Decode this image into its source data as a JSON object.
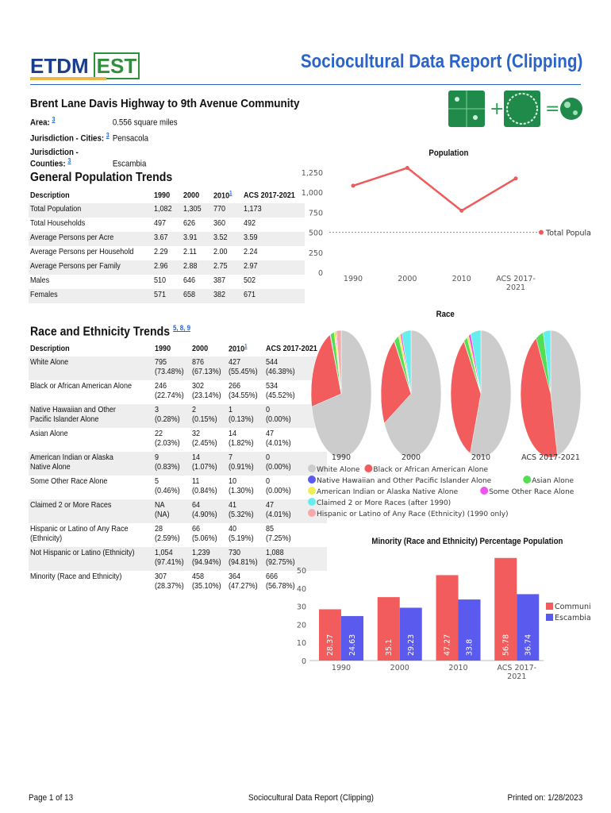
{
  "header": {
    "logo_left": "ETDM",
    "logo_right": "EST",
    "report_title": "Sociocultural Data Report (Clipping)"
  },
  "location": {
    "title": "Brent Lane Davis Highway to 9th Avenue Community",
    "area_label": "Area:",
    "area_ref": "3",
    "area_value": "0.556 square miles",
    "cities_label": "Jurisdiction - Cities:",
    "cities_ref": "3",
    "cities_value": "Pensacola",
    "counties_label": "Jurisdiction - Counties:",
    "counties_ref": "3",
    "counties_value": "Escambia"
  },
  "puzzle": {
    "plus": "+",
    "equals": "="
  },
  "population_section": {
    "title": "General Population Trends",
    "headers": [
      "Description",
      "1990",
      "2000",
      "2010",
      "ACS 2017-2021"
    ],
    "header_ref": "1",
    "rows": [
      [
        "Total Population",
        "1,082",
        "1,305",
        "770",
        "1,173"
      ],
      [
        "Total Households",
        "497",
        "626",
        "360",
        "492"
      ],
      [
        "Average Persons per Acre",
        "3.67",
        "3.91",
        "3.52",
        "3.59"
      ],
      [
        "Average Persons per Household",
        "2.29",
        "2.11",
        "2.00",
        "2.24"
      ],
      [
        "Average Persons per Family",
        "2.96",
        "2.88",
        "2.75",
        "2.97"
      ],
      [
        "Males",
        "510",
        "646",
        "387",
        "502"
      ],
      [
        "Females",
        "571",
        "658",
        "382",
        "671"
      ]
    ]
  },
  "race_section": {
    "title": "Race and Ethnicity Trends",
    "title_refs": "5, 8, 9",
    "headers": [
      "Description",
      "1990",
      "2000",
      "2010",
      "ACS 2017-2021"
    ],
    "header_ref": "1",
    "rows": [
      {
        "d1": "White Alone",
        "d2": "",
        "v": [
          "795",
          "876",
          "427",
          "544"
        ],
        "p": [
          "(73.48%)",
          "(67.13%)",
          "(55.45%)",
          "(46.38%)"
        ]
      },
      {
        "d1": "Black or African American Alone",
        "d2": "",
        "v": [
          "246",
          "302",
          "266",
          "534"
        ],
        "p": [
          "(22.74%)",
          "(23.14%)",
          "(34.55%)",
          "(45.52%)"
        ]
      },
      {
        "d1": "Native Hawaiian and Other",
        "d2": "Pacific Islander Alone",
        "v": [
          "3",
          "2",
          "1",
          "0"
        ],
        "p": [
          "(0.28%)",
          "(0.15%)",
          "(0.13%)",
          "(0.00%)"
        ]
      },
      {
        "d1": "Asian Alone",
        "d2": "",
        "v": [
          "22",
          "32",
          "14",
          "47"
        ],
        "p": [
          "(2.03%)",
          "(2.45%)",
          "(1.82%)",
          "(4.01%)"
        ]
      },
      {
        "d1": "American Indian or Alaska",
        "d2": "Native Alone",
        "v": [
          "9",
          "14",
          "7",
          "0"
        ],
        "p": [
          "(0.83%)",
          "(1.07%)",
          "(0.91%)",
          "(0.00%)"
        ]
      },
      {
        "d1": "Some Other Race Alone",
        "d2": "",
        "v": [
          "5",
          "11",
          "10",
          "0"
        ],
        "p": [
          "(0.46%)",
          "(0.84%)",
          "(1.30%)",
          "(0.00%)"
        ]
      },
      {
        "d1": "Claimed 2 or More Races",
        "d2": "",
        "v": [
          "NA",
          "64",
          "41",
          "47"
        ],
        "p": [
          "(NA)",
          "(4.90%)",
          "(5.32%)",
          "(4.01%)"
        ]
      },
      {
        "d1": "Hispanic or Latino of Any Race",
        "d2": "(Ethnicity)",
        "v": [
          "28",
          "66",
          "40",
          "85"
        ],
        "p": [
          "(2.59%)",
          "(5.06%)",
          "(5.19%)",
          "(7.25%)"
        ]
      },
      {
        "d1": "Not Hispanic or Latino (Ethnicity)",
        "d2": "",
        "v": [
          "1,054",
          "1,239",
          "730",
          "1,088"
        ],
        "p": [
          "(97.41%)",
          "(94.94%)",
          "(94.81%)",
          "(92.75%)"
        ]
      },
      {
        "d1": "Minority (Race and Ethnicity)",
        "d2": "",
        "v": [
          "307",
          "458",
          "364",
          "666"
        ],
        "p": [
          "(28.37%)",
          "(35.10%)",
          "(47.27%)",
          "(56.78%)"
        ]
      }
    ]
  },
  "chart_data": [
    {
      "type": "line",
      "title": "Population",
      "categories": [
        "1990",
        "2000",
        "2010",
        "ACS 2017-2021"
      ],
      "category_lines": [
        [
          "1990"
        ],
        [
          "2000"
        ],
        [
          "2010"
        ],
        [
          "ACS 2017-",
          "2021"
        ]
      ],
      "series": [
        {
          "name": "Total Population",
          "values": [
            1082,
            1305,
            770,
            1173
          ],
          "color": "#f05a5a"
        }
      ],
      "yticks": [
        "0",
        "250",
        "500",
        "750",
        "1,000",
        "1,250"
      ],
      "ylim": [
        0,
        1250
      ],
      "legend": "right"
    },
    {
      "type": "pie",
      "title": "Race",
      "categories": [
        "1990",
        "2000",
        "2010",
        "ACS 2017-2021"
      ],
      "labels": [
        "White Alone",
        "Black or African American Alone",
        "Native Hawaiian and Other Pacific Islander Alone",
        "Asian Alone",
        "American Indian or Alaska Native Alone",
        "Some Other Race Alone",
        "Claimed 2 or More Races (after 1990)",
        "Hispanic or Latino of Any Race (Ethnicity) (1990 only)"
      ],
      "colors": [
        "#cccccc",
        "#f25c5c",
        "#5a5aee",
        "#55dd55",
        "#f2ee55",
        "#ee55ee",
        "#66eeee",
        "#f5aaaa"
      ],
      "values": [
        [
          795,
          246,
          3,
          22,
          9,
          5,
          0,
          28
        ],
        [
          876,
          302,
          2,
          32,
          14,
          11,
          64,
          0
        ],
        [
          427,
          266,
          1,
          14,
          7,
          10,
          41,
          0
        ],
        [
          544,
          534,
          0,
          47,
          0,
          0,
          47,
          0
        ]
      ]
    },
    {
      "type": "bar",
      "title": "Minority (Race and Ethnicity) Percentage Population",
      "categories": [
        "1990",
        "2000",
        "2010",
        "ACS 2017-2021"
      ],
      "category_lines": [
        [
          "1990"
        ],
        [
          "2000"
        ],
        [
          "2010"
        ],
        [
          "ACS 2017-",
          "2021"
        ]
      ],
      "series": [
        {
          "name": "Community",
          "values": [
            28.37,
            35.1,
            47.27,
            56.78
          ],
          "labels": [
            "28.37",
            "35.1",
            "47.27",
            "56.78"
          ],
          "color": "#f25c5c"
        },
        {
          "name": "Escambia",
          "values": [
            24.63,
            29.23,
            33.8,
            36.74
          ],
          "labels": [
            "24.63",
            "29.23",
            "33.8",
            "36.74"
          ],
          "color": "#5a5aee"
        }
      ],
      "yticks": [
        "0",
        "10",
        "20",
        "30",
        "40",
        "50"
      ],
      "ylim": [
        0,
        58
      ],
      "legend": "right"
    }
  ],
  "footer": {
    "page": "Page 1 of 13",
    "center": "Sociocultural Data Report (Clipping)",
    "printed": "Printed on: 1/28/2023"
  }
}
